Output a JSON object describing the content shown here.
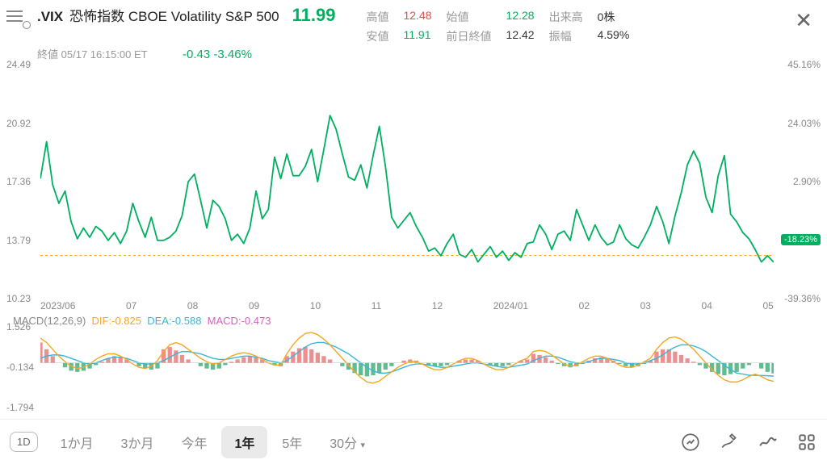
{
  "header": {
    "ticker": ".VIX",
    "name": "恐怖指数 CBOE Volatility S&P 500",
    "price": "11.99",
    "timestamp_label": "終値",
    "timestamp": "05/17 16:15:00 ET",
    "change_abs": "-0.43",
    "change_pct": "-3.46%"
  },
  "stats": {
    "high_label": "高値",
    "high": "12.48",
    "open_label": "始値",
    "open": "12.28",
    "volume_label": "出来高",
    "volume": "0株",
    "low_label": "安値",
    "low": "11.91",
    "prevclose_label": "前日終値",
    "prevclose": "12.42",
    "amplitude_label": "振幅",
    "amplitude": "4.59%"
  },
  "chart": {
    "type": "line",
    "line_color": "#00b060",
    "ref_line_color": "#f5a623",
    "ref_line_dash": "3,3",
    "background": "#ffffff",
    "y_left_ticks": [
      {
        "v": 24.49,
        "pos": 0
      },
      {
        "v": 20.92,
        "pos": 25
      },
      {
        "v": 17.36,
        "pos": 50
      },
      {
        "v": 13.79,
        "pos": 75
      },
      {
        "v": 10.23,
        "pos": 100
      }
    ],
    "y_right_ticks": [
      {
        "v": "45.16%",
        "pos": 0
      },
      {
        "v": "24.03%",
        "pos": 25
      },
      {
        "v": "2.90%",
        "pos": 50
      },
      {
        "v": "-18.23%",
        "pos": 75,
        "badge": true
      },
      {
        "v": "-39.36%",
        "pos": 100
      }
    ],
    "x_labels": [
      "2023/06",
      "07",
      "08",
      "09",
      "10",
      "11",
      "12",
      "2024/01",
      "02",
      "03",
      "04",
      "05"
    ],
    "ref_y": 12.42,
    "ylim": [
      10.23,
      24.49
    ],
    "series": [
      17.4,
      19.8,
      17.0,
      15.8,
      16.6,
      14.6,
      13.5,
      14.2,
      13.6,
      14.3,
      14.0,
      13.4,
      13.9,
      13.2,
      14.0,
      15.8,
      14.6,
      13.6,
      14.9,
      13.4,
      13.4,
      13.6,
      14.0,
      15.0,
      17.2,
      17.7,
      16.0,
      14.2,
      16.0,
      15.6,
      14.8,
      13.4,
      13.8,
      13.2,
      14.2,
      16.6,
      14.8,
      15.4,
      18.8,
      17.4,
      19.0,
      17.6,
      17.6,
      18.2,
      19.3,
      17.2,
      19.3,
      21.5,
      20.6,
      19.0,
      17.5,
      17.3,
      18.3,
      16.8,
      18.9,
      20.8,
      18.2,
      14.9,
      14.2,
      14.7,
      15.2,
      14.3,
      13.6,
      12.7,
      12.9,
      12.4,
      13.2,
      13.8,
      12.5,
      12.3,
      12.8,
      12.0,
      12.5,
      13.0,
      12.3,
      12.7,
      12.1,
      12.6,
      12.3,
      13.2,
      13.3,
      14.4,
      13.8,
      12.8,
      13.8,
      14.0,
      13.4,
      15.4,
      14.4,
      13.4,
      14.4,
      13.6,
      13.1,
      13.3,
      14.4,
      13.5,
      13.1,
      12.9,
      13.6,
      14.4,
      15.6,
      14.6,
      13.2,
      15.0,
      16.5,
      18.3,
      19.2,
      18.4,
      16.2,
      15.2,
      17.6,
      18.9,
      15.1,
      14.6,
      13.9,
      13.5,
      12.8,
      12.0,
      12.4,
      11.99
    ]
  },
  "macd": {
    "params_label": "MACD(12,26,9)",
    "dif_label": "DIF:",
    "dif": "-0.825",
    "dea_label": "DEA:",
    "dea": "-0.588",
    "macd_label": "MACD:",
    "macd_val": "-0.473",
    "dif_color": "#f5a623",
    "dea_color": "#3bb5d8",
    "hist_pos_color": "#e86a6a",
    "hist_neg_color": "#2aa76a",
    "ylim": [
      -1.794,
      1.526
    ],
    "y_ticks": [
      {
        "v": "1.526",
        "pos": 0
      },
      {
        "v": "-0.134",
        "pos": 50
      },
      {
        "v": "-1.794",
        "pos": 100
      }
    ],
    "hist": [
      0.9,
      0.6,
      0.3,
      0.0,
      -0.2,
      -0.35,
      -0.4,
      -0.35,
      -0.25,
      -0.1,
      0.05,
      0.2,
      0.3,
      0.25,
      0.15,
      0.0,
      -0.15,
      -0.25,
      -0.3,
      -0.25,
      0.6,
      0.7,
      0.55,
      0.35,
      0.15,
      0.0,
      -0.15,
      -0.25,
      -0.3,
      -0.25,
      -0.1,
      0.05,
      0.15,
      0.25,
      0.3,
      0.25,
      0.15,
      0.0,
      -0.1,
      -0.15,
      0.3,
      0.5,
      0.65,
      0.7,
      0.6,
      0.45,
      0.3,
      0.15,
      0.0,
      -0.15,
      -0.3,
      -0.45,
      -0.55,
      -0.6,
      -0.55,
      -0.45,
      -0.3,
      -0.15,
      0.0,
      0.1,
      0.15,
      0.1,
      0.0,
      -0.1,
      -0.15,
      -0.15,
      -0.1,
      0.0,
      0.1,
      0.15,
      0.15,
      0.1,
      0.0,
      -0.1,
      -0.15,
      -0.15,
      -0.1,
      0.0,
      0.1,
      0.15,
      0.4,
      0.35,
      0.25,
      0.1,
      -0.05,
      -0.15,
      -0.2,
      -0.15,
      -0.05,
      0.1,
      0.2,
      0.25,
      0.2,
      0.1,
      -0.05,
      -0.15,
      -0.2,
      -0.15,
      -0.05,
      0.1,
      0.5,
      0.6,
      0.6,
      0.5,
      0.35,
      0.2,
      0.05,
      -0.1,
      -0.25,
      -0.4,
      -0.5,
      -0.55,
      -0.5,
      -0.4,
      -0.25,
      -0.1,
      0.0,
      -0.25,
      -0.4,
      -0.47
    ],
    "dif_series": [
      1.1,
      0.9,
      0.6,
      0.3,
      0.05,
      -0.15,
      -0.25,
      -0.2,
      -0.05,
      0.15,
      0.3,
      0.4,
      0.4,
      0.3,
      0.15,
      -0.05,
      -0.2,
      -0.25,
      -0.15,
      0.1,
      0.5,
      0.8,
      0.9,
      0.8,
      0.6,
      0.4,
      0.2,
      0.05,
      -0.05,
      0.0,
      0.15,
      0.3,
      0.4,
      0.45,
      0.4,
      0.3,
      0.15,
      0.0,
      -0.1,
      -0.1,
      0.4,
      0.8,
      1.1,
      1.3,
      1.35,
      1.25,
      1.05,
      0.8,
      0.5,
      0.2,
      -0.1,
      -0.4,
      -0.65,
      -0.85,
      -0.9,
      -0.8,
      -0.6,
      -0.4,
      -0.2,
      -0.05,
      0.05,
      0.05,
      -0.05,
      -0.2,
      -0.3,
      -0.3,
      -0.2,
      -0.05,
      0.1,
      0.2,
      0.2,
      0.1,
      -0.05,
      -0.2,
      -0.3,
      -0.3,
      -0.2,
      -0.05,
      0.1,
      0.2,
      0.5,
      0.55,
      0.5,
      0.35,
      0.15,
      -0.05,
      -0.15,
      -0.1,
      0.05,
      0.2,
      0.3,
      0.3,
      0.2,
      0.05,
      -0.1,
      -0.2,
      -0.2,
      -0.1,
      0.05,
      0.2,
      0.6,
      0.9,
      1.1,
      1.15,
      1.05,
      0.85,
      0.6,
      0.3,
      0.0,
      -0.3,
      -0.55,
      -0.75,
      -0.85,
      -0.85,
      -0.75,
      -0.6,
      -0.5,
      -0.6,
      -0.75,
      -0.825
    ],
    "dea_series": [
      0.2,
      0.3,
      0.35,
      0.35,
      0.3,
      0.2,
      0.1,
      0.0,
      -0.05,
      0.0,
      0.1,
      0.2,
      0.25,
      0.25,
      0.2,
      0.1,
      0.0,
      -0.05,
      -0.05,
      0.0,
      0.1,
      0.25,
      0.4,
      0.5,
      0.5,
      0.45,
      0.4,
      0.3,
      0.2,
      0.15,
      0.15,
      0.2,
      0.25,
      0.3,
      0.3,
      0.25,
      0.2,
      0.1,
      0.05,
      0.0,
      0.1,
      0.3,
      0.5,
      0.7,
      0.85,
      0.9,
      0.9,
      0.8,
      0.7,
      0.55,
      0.4,
      0.2,
      0.0,
      -0.2,
      -0.35,
      -0.45,
      -0.45,
      -0.4,
      -0.3,
      -0.2,
      -0.1,
      -0.05,
      -0.05,
      -0.1,
      -0.15,
      -0.2,
      -0.2,
      -0.15,
      -0.1,
      -0.05,
      0.0,
      0.0,
      -0.05,
      -0.1,
      -0.15,
      -0.2,
      -0.2,
      -0.15,
      -0.1,
      -0.05,
      0.1,
      0.2,
      0.3,
      0.3,
      0.25,
      0.15,
      0.05,
      0.0,
      0.0,
      0.05,
      0.15,
      0.2,
      0.2,
      0.15,
      0.1,
      0.0,
      -0.05,
      -0.05,
      0.0,
      0.1,
      0.2,
      0.35,
      0.55,
      0.7,
      0.8,
      0.8,
      0.75,
      0.65,
      0.5,
      0.3,
      0.1,
      -0.1,
      -0.3,
      -0.45,
      -0.5,
      -0.55,
      -0.55,
      -0.56,
      -0.57,
      -0.588
    ]
  },
  "footer": {
    "box_label": "1D",
    "ranges": [
      "1か月",
      "3か月",
      "今年",
      "1年",
      "5年",
      "30分"
    ],
    "selected": "1年"
  }
}
